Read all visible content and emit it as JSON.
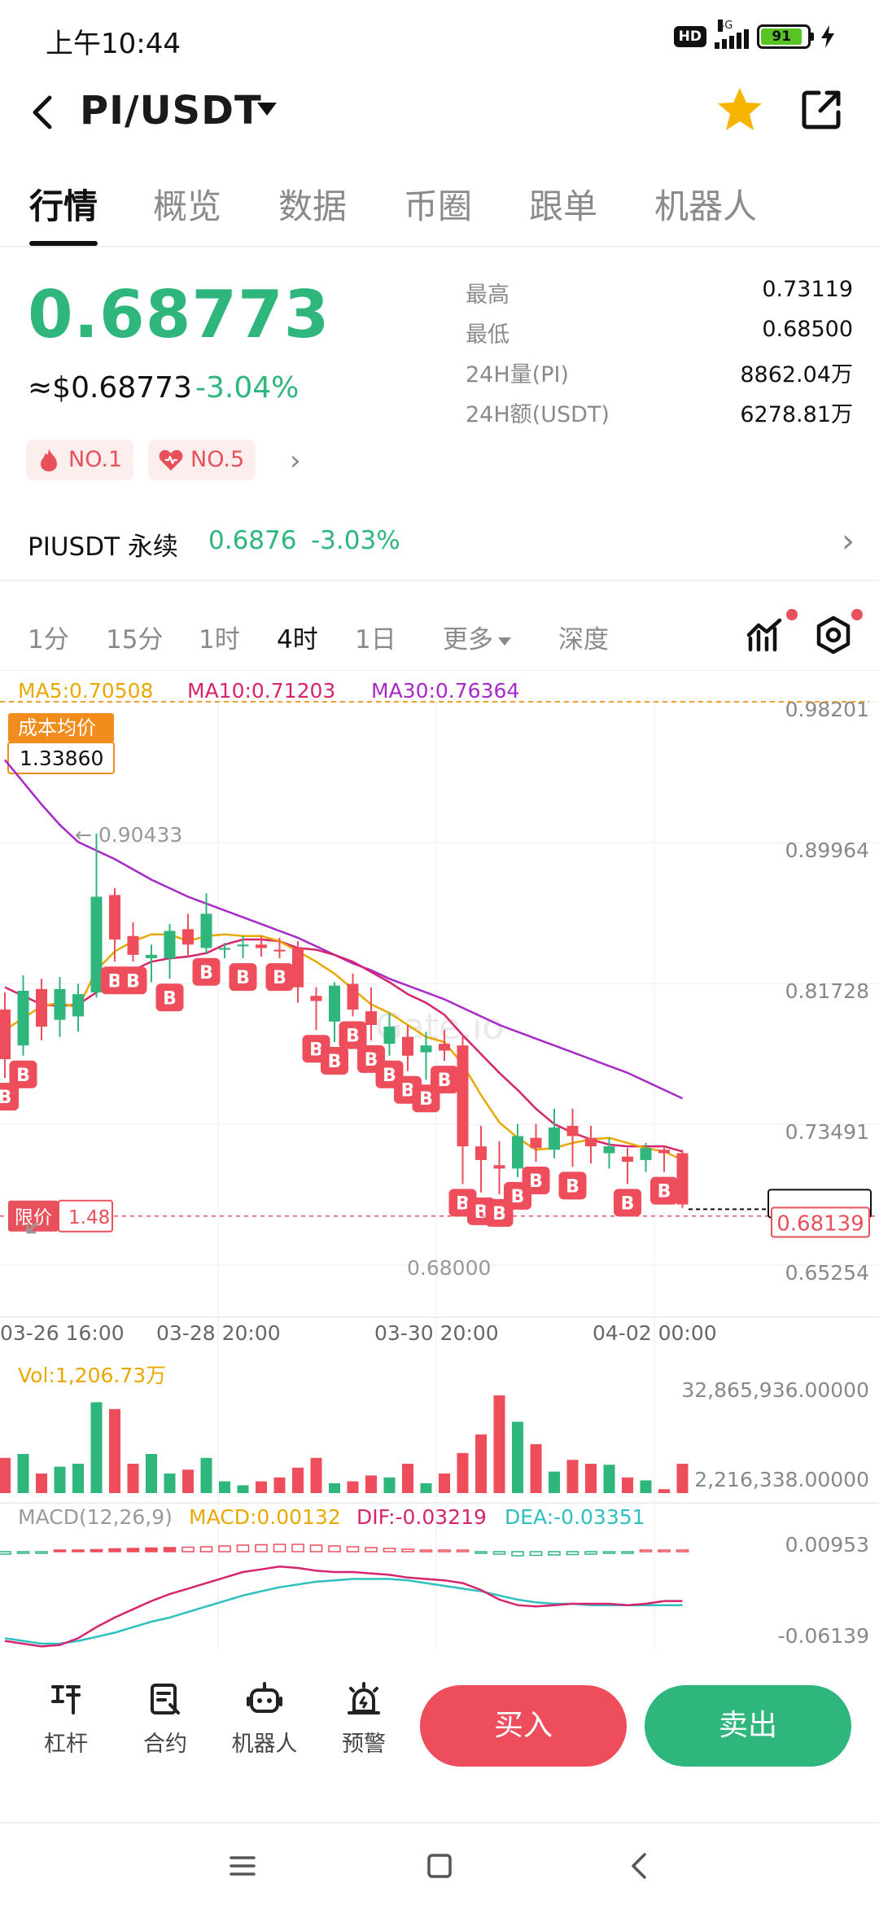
{
  "status_bar": {
    "time": "上午10:44",
    "hd": "HD",
    "network": "4G",
    "battery": "91",
    "charging_icon": "bolt-icon"
  },
  "header": {
    "pair": "PI/USDT",
    "favorite_icon": "star-icon",
    "favorite_color": "#f7b500",
    "share_icon": "share-icon"
  },
  "tabs": [
    {
      "label": "行情",
      "active": true
    },
    {
      "label": "概览",
      "active": false
    },
    {
      "label": "数据",
      "active": false
    },
    {
      "label": "币圈",
      "active": false
    },
    {
      "label": "跟单",
      "active": false
    },
    {
      "label": "机器人",
      "active": false
    }
  ],
  "ticker": {
    "last_price": "0.68773",
    "usd_price": "≈$0.68773",
    "change_pct": "-3.04%",
    "color_down": "#2eb67d",
    "color_up": "#ee4d5c",
    "badges": [
      {
        "label": "NO.1",
        "icon": "fire-icon"
      },
      {
        "label": "NO.5",
        "icon": "heart-icon"
      }
    ],
    "stats": [
      {
        "label": "最高",
        "value": "0.73119"
      },
      {
        "label": "最低",
        "value": "0.68500"
      },
      {
        "label": "24H量(PI)",
        "value": "8862.04万"
      },
      {
        "label": "24H额(USDT)",
        "value": "6278.81万"
      }
    ]
  },
  "perpetual": {
    "label": "PIUSDT 永续",
    "price": "0.6876",
    "change": "-3.03%"
  },
  "intervals": [
    {
      "label": "1分",
      "active": false
    },
    {
      "label": "15分",
      "active": false
    },
    {
      "label": "1时",
      "active": false
    },
    {
      "label": "4时",
      "active": true
    },
    {
      "label": "1日",
      "active": false
    },
    {
      "label": "更多",
      "active": false
    },
    {
      "label": "深度",
      "active": false
    }
  ],
  "chart_tools": {
    "indicator_icon": "chart-indicator-icon",
    "settings_icon": "settings-icon"
  },
  "chart_data": {
    "type": "candlestick",
    "ma": {
      "ma5": "MA5:0.70508",
      "ma10": "MA10:0.71203",
      "ma30": "MA30:0.76364",
      "ma5_color": "#e9a800",
      "ma10_color": "#d6246e",
      "ma30_color": "#a629c8"
    },
    "y_ticks": [
      "0.98201",
      "0.89964",
      "0.81728",
      "0.73491",
      "0.65254"
    ],
    "y_tick_values": [
      0.98201,
      0.89964,
      0.81728,
      0.73491,
      0.65254
    ],
    "x_ticks": [
      "03-26 16:00",
      "03-28 20:00",
      "03-30 20:00",
      "04-02 00:00"
    ],
    "cost_avg_label": "成本均价",
    "cost_avg_value": "1.33860",
    "high_marker": "← 0.90433",
    "low_marker": "0.68000",
    "limit_label": "限价",
    "limit_value": "1.48",
    "current_price_tag": "0.68139",
    "current_price": 0.68139,
    "limit_line_price": 0.6812,
    "watermark": "Gate.io",
    "candles": [
      {
        "o": 0.802,
        "h": 0.812,
        "l": 0.762,
        "c": 0.773
      },
      {
        "o": 0.781,
        "h": 0.822,
        "l": 0.775,
        "c": 0.813
      },
      {
        "o": 0.814,
        "h": 0.82,
        "l": 0.784,
        "c": 0.792
      },
      {
        "o": 0.796,
        "h": 0.821,
        "l": 0.786,
        "c": 0.814
      },
      {
        "o": 0.798,
        "h": 0.817,
        "l": 0.789,
        "c": 0.811
      },
      {
        "o": 0.812,
        "h": 0.905,
        "l": 0.809,
        "c": 0.868
      },
      {
        "o": 0.869,
        "h": 0.873,
        "l": 0.83,
        "c": 0.843
      },
      {
        "o": 0.845,
        "h": 0.853,
        "l": 0.83,
        "c": 0.834
      },
      {
        "o": 0.832,
        "h": 0.84,
        "l": 0.818,
        "c": 0.834
      },
      {
        "o": 0.832,
        "h": 0.852,
        "l": 0.82,
        "c": 0.848
      },
      {
        "o": 0.849,
        "h": 0.858,
        "l": 0.833,
        "c": 0.84
      },
      {
        "o": 0.838,
        "h": 0.87,
        "l": 0.835,
        "c": 0.858
      },
      {
        "o": 0.837,
        "h": 0.841,
        "l": 0.832,
        "c": 0.838
      },
      {
        "o": 0.839,
        "h": 0.845,
        "l": 0.832,
        "c": 0.84
      },
      {
        "o": 0.84,
        "h": 0.845,
        "l": 0.833,
        "c": 0.838
      },
      {
        "o": 0.837,
        "h": 0.844,
        "l": 0.832,
        "c": 0.836
      },
      {
        "o": 0.838,
        "h": 0.842,
        "l": 0.806,
        "c": 0.815
      },
      {
        "o": 0.81,
        "h": 0.815,
        "l": 0.79,
        "c": 0.807
      },
      {
        "o": 0.795,
        "h": 0.818,
        "l": 0.783,
        "c": 0.816
      },
      {
        "o": 0.817,
        "h": 0.823,
        "l": 0.798,
        "c": 0.802
      },
      {
        "o": 0.801,
        "h": 0.815,
        "l": 0.784,
        "c": 0.793
      },
      {
        "o": 0.782,
        "h": 0.8,
        "l": 0.775,
        "c": 0.792
      },
      {
        "o": 0.786,
        "h": 0.793,
        "l": 0.766,
        "c": 0.775
      },
      {
        "o": 0.777,
        "h": 0.789,
        "l": 0.761,
        "c": 0.781
      },
      {
        "o": 0.782,
        "h": 0.79,
        "l": 0.772,
        "c": 0.778
      },
      {
        "o": 0.781,
        "h": 0.787,
        "l": 0.7,
        "c": 0.722
      },
      {
        "o": 0.722,
        "h": 0.734,
        "l": 0.695,
        "c": 0.714
      },
      {
        "o": 0.711,
        "h": 0.725,
        "l": 0.694,
        "c": 0.709
      },
      {
        "o": 0.709,
        "h": 0.735,
        "l": 0.704,
        "c": 0.728
      },
      {
        "o": 0.727,
        "h": 0.735,
        "l": 0.713,
        "c": 0.721
      },
      {
        "o": 0.72,
        "h": 0.744,
        "l": 0.715,
        "c": 0.733
      },
      {
        "o": 0.734,
        "h": 0.744,
        "l": 0.71,
        "c": 0.728
      },
      {
        "o": 0.727,
        "h": 0.734,
        "l": 0.712,
        "c": 0.722
      },
      {
        "o": 0.718,
        "h": 0.727,
        "l": 0.709,
        "c": 0.722
      },
      {
        "o": 0.716,
        "h": 0.721,
        "l": 0.7,
        "c": 0.713
      },
      {
        "o": 0.714,
        "h": 0.724,
        "l": 0.707,
        "c": 0.721
      },
      {
        "o": 0.72,
        "h": 0.722,
        "l": 0.707,
        "c": 0.718
      },
      {
        "o": 0.718,
        "h": 0.72,
        "l": 0.686,
        "c": 0.688
      }
    ],
    "buy_marks": [
      0,
      1,
      6,
      7,
      9,
      11,
      13,
      15,
      17,
      18,
      19,
      20,
      21,
      22,
      23,
      24,
      25,
      26,
      27,
      28,
      29,
      31,
      34,
      36
    ],
    "ma5_series": [
      0.79,
      0.797,
      0.804,
      0.806,
      0.803,
      0.825,
      0.836,
      0.842,
      0.846,
      0.846,
      0.842,
      0.845,
      0.846,
      0.845,
      0.845,
      0.842,
      0.836,
      0.83,
      0.823,
      0.814,
      0.805,
      0.8,
      0.793,
      0.786,
      0.783,
      0.77,
      0.752,
      0.736,
      0.727,
      0.72,
      0.721,
      0.724,
      0.726,
      0.727,
      0.724,
      0.721,
      0.719,
      0.714
    ],
    "ma10_series": [
      0.815,
      0.81,
      0.805,
      0.804,
      0.805,
      0.812,
      0.818,
      0.825,
      0.83,
      0.832,
      0.833,
      0.835,
      0.84,
      0.843,
      0.843,
      0.842,
      0.838,
      0.837,
      0.834,
      0.83,
      0.824,
      0.818,
      0.811,
      0.806,
      0.799,
      0.787,
      0.776,
      0.765,
      0.755,
      0.744,
      0.735,
      0.73,
      0.726,
      0.723,
      0.722,
      0.722,
      0.722,
      0.719
    ],
    "ma30_series": [
      0.948,
      0.935,
      0.922,
      0.91,
      0.9,
      0.895,
      0.89,
      0.884,
      0.878,
      0.873,
      0.868,
      0.864,
      0.86,
      0.856,
      0.852,
      0.848,
      0.844,
      0.839,
      0.834,
      0.829,
      0.825,
      0.82,
      0.816,
      0.812,
      0.808,
      0.803,
      0.798,
      0.793,
      0.789,
      0.785,
      0.781,
      0.777,
      0.773,
      0.769,
      0.765,
      0.76,
      0.755,
      0.75
    ],
    "volume": {
      "label": "Vol:1,206.73万",
      "ticks": [
        "32,865,936.00000",
        "2,216,338.00000"
      ],
      "values": [
        0.36,
        0.4,
        0.2,
        0.27,
        0.3,
        0.93,
        0.86,
        0.3,
        0.4,
        0.2,
        0.24,
        0.36,
        0.12,
        0.08,
        0.12,
        0.16,
        0.26,
        0.36,
        0.1,
        0.12,
        0.18,
        0.16,
        0.3,
        0.1,
        0.2,
        0.41,
        0.6,
        1.0,
        0.73,
        0.5,
        0.22,
        0.34,
        0.3,
        0.29,
        0.16,
        0.13,
        0.04,
        0.3
      ]
    },
    "macd": {
      "title": "MACD(12,26,9)",
      "macd": "MACD:0.00132",
      "dif": "DIF:-0.03219",
      "dea": "DEA:-0.03351",
      "ticks": [
        "0.00953",
        "-0.06139"
      ],
      "bars": [
        -0.3,
        -0.2,
        -0.1,
        0.05,
        0.15,
        0.25,
        0.35,
        0.4,
        0.45,
        0.5,
        0.55,
        0.6,
        0.7,
        0.8,
        0.85,
        0.9,
        0.9,
        0.8,
        0.7,
        0.6,
        0.5,
        0.4,
        0.3,
        0.2,
        0.1,
        0.0,
        -0.1,
        -0.3,
        -0.5,
        -0.45,
        -0.4,
        -0.35,
        -0.3,
        -0.2,
        -0.1,
        0.1,
        0.15,
        0.2
      ],
      "dif_series": [
        -0.06,
        -0.062,
        -0.064,
        -0.063,
        -0.058,
        -0.05,
        -0.043,
        -0.037,
        -0.031,
        -0.026,
        -0.022,
        -0.018,
        -0.014,
        -0.01,
        -0.008,
        -0.006,
        -0.007,
        -0.009,
        -0.01,
        -0.01,
        -0.011,
        -0.012,
        -0.014,
        -0.015,
        -0.016,
        -0.018,
        -0.023,
        -0.03,
        -0.034,
        -0.035,
        -0.034,
        -0.033,
        -0.033,
        -0.033,
        -0.034,
        -0.033,
        -0.031,
        -0.031
      ],
      "dea_series": [
        -0.058,
        -0.06,
        -0.062,
        -0.062,
        -0.06,
        -0.057,
        -0.054,
        -0.05,
        -0.046,
        -0.043,
        -0.039,
        -0.035,
        -0.031,
        -0.027,
        -0.024,
        -0.021,
        -0.019,
        -0.017,
        -0.016,
        -0.015,
        -0.015,
        -0.015,
        -0.016,
        -0.018,
        -0.02,
        -0.022,
        -0.024,
        -0.027,
        -0.03,
        -0.032,
        -0.033,
        -0.033,
        -0.034,
        -0.034,
        -0.034,
        -0.034,
        -0.034,
        -0.034
      ]
    }
  },
  "action_bar": {
    "items": [
      {
        "label": "杠杆",
        "icon": "leverage-icon"
      },
      {
        "label": "合约",
        "icon": "contract-icon"
      },
      {
        "label": "机器人",
        "icon": "robot-icon"
      },
      {
        "label": "预警",
        "icon": "alarm-icon"
      }
    ],
    "buy": "买入",
    "sell": "卖出"
  },
  "nav": {
    "menu_icon": "menu-icon",
    "home_icon": "home-square-icon",
    "back_icon": "back-icon"
  }
}
